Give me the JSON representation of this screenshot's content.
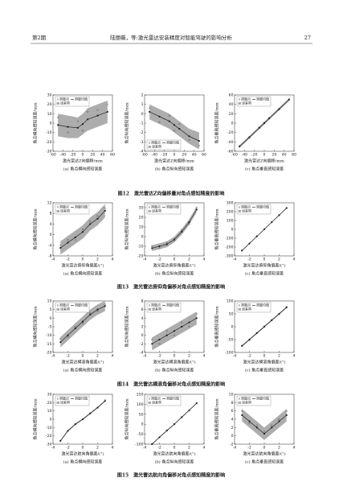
{
  "header": {
    "left": "第2期",
    "center": "陆丽薇，等:激光雷达安装精度对智能驾驶的影响分析",
    "right": "27"
  },
  "captions": [
    "图12　激光雷达Z向偏移量对角点感知精度的影响",
    "图13　激光雷达俯仰角偏移对角点感知精度的影响",
    "图14　激光雷达横滚角偏移对角点感知精度的影响",
    "图15　激光雷达航向角偏移对角点感知精度的影响"
  ],
  "chart_data": [
    {
      "type": "band",
      "subtitle": "(a) 角点横向感知误差",
      "xlabel": "激光雷达Z向偏移/mm",
      "ylabel": "角点横向感知误差/mm",
      "x": [
        -50,
        -30,
        -10,
        0,
        10,
        30,
        50
      ],
      "xlim": [
        -60,
        60
      ],
      "xticks": [
        -60,
        -40,
        -20,
        0,
        20,
        40,
        60
      ],
      "ylim": [
        -30,
        30
      ],
      "yticks": [
        -30,
        -20,
        -10,
        0,
        10,
        20,
        30
      ],
      "legend": "upper left",
      "series": [
        {
          "name": "测量点",
          "color": "#444",
          "values": [
            6,
            -10,
            2,
            -8,
            12,
            14,
            20
          ]
        },
        {
          "name": "测量均值",
          "color": "#111",
          "values": [
            -2,
            -4,
            -5,
            -1,
            4,
            8,
            12
          ]
        },
        {
          "name": "误差带",
          "color": "#777",
          "lower": [
            -14,
            -16,
            -16,
            -12,
            -8,
            -4,
            0
          ],
          "upper": [
            10,
            8,
            6,
            10,
            16,
            20,
            24
          ]
        }
      ]
    },
    {
      "type": "band",
      "subtitle": "(b) 角点纵向感知误差",
      "xlabel": "激光雷达Z向偏移/mm",
      "ylabel": "角点纵向感知误差/mm",
      "x": [
        -50,
        -30,
        -10,
        0,
        10,
        30,
        50
      ],
      "xlim": [
        -60,
        60
      ],
      "xticks": [
        -60,
        -40,
        -20,
        0,
        20,
        40,
        60
      ],
      "ylim": [
        -4,
        2
      ],
      "yticks": [
        -4,
        -3,
        -2,
        -1,
        0,
        1,
        2
      ],
      "legend": "lower left",
      "series": [
        {
          "name": "测量点",
          "color": "#444",
          "values": [
            0.6,
            -0.9,
            -0.2,
            -1.8,
            -1.1,
            -2.8,
            -3.4
          ]
        },
        {
          "name": "测量均值",
          "color": "#111",
          "values": [
            0.2,
            -0.3,
            -0.8,
            -1.2,
            -1.6,
            -2.4,
            -2.9
          ]
        },
        {
          "name": "误差带",
          "color": "#777",
          "lower": [
            -0.6,
            -1.1,
            -1.6,
            -2,
            -2.4,
            -3.2,
            -3.8
          ],
          "upper": [
            1,
            0.5,
            0,
            -0.4,
            -0.8,
            -1.6,
            -2
          ]
        }
      ]
    },
    {
      "type": "band",
      "subtitle": "(c) 角点垂直感知误差",
      "xlabel": "激光雷达Z向偏移/mm",
      "ylabel": "角点垂直感知误差/mm",
      "x": [
        -50,
        -30,
        -10,
        0,
        10,
        30,
        50
      ],
      "xlim": [
        -60,
        60
      ],
      "xticks": [
        -60,
        -40,
        -20,
        0,
        20,
        40,
        60
      ],
      "ylim": [
        -60,
        60
      ],
      "yticks": [
        -60,
        -40,
        -20,
        0,
        20,
        40,
        60
      ],
      "legend": "upper left",
      "series": [
        {
          "name": "测量点",
          "color": "#444",
          "values": [
            -49,
            -31,
            -9,
            1,
            11,
            29,
            51
          ]
        },
        {
          "name": "测量均值",
          "color": "#111",
          "values": [
            -50,
            -30,
            -10,
            0,
            10,
            30,
            50
          ]
        },
        {
          "name": "误差带",
          "color": "#777",
          "lower": [
            -53,
            -33,
            -13,
            -3,
            7,
            27,
            47
          ],
          "upper": [
            -47,
            -27,
            -7,
            3,
            13,
            33,
            53
          ]
        }
      ]
    },
    {
      "type": "band",
      "subtitle": "(a) 角点横向感知误差",
      "xlabel": "激光雷达俯仰角偏差/(°)",
      "ylabel": "角点横向感知误差/mm",
      "x": [
        -3,
        -2,
        -1,
        0,
        1,
        2,
        3
      ],
      "xlim": [
        -4,
        4
      ],
      "xticks": [
        -4,
        -2,
        0,
        2,
        4
      ],
      "ylim": [
        -8,
        12
      ],
      "yticks": [
        -8,
        -4,
        0,
        4,
        8,
        12
      ],
      "legend": "upper left",
      "series": [
        {
          "name": "测量点",
          "color": "#444",
          "values": [
            -4,
            -2,
            -2,
            2,
            5,
            7,
            10
          ]
        },
        {
          "name": "测量均值",
          "color": "#111",
          "values": [
            -5,
            -3,
            -1,
            1,
            4,
            6,
            9
          ]
        },
        {
          "name": "误差带",
          "color": "#777",
          "lower": [
            -7.5,
            -5.5,
            -3.5,
            -1.5,
            1.5,
            3.5,
            6.5
          ],
          "upper": [
            -2.5,
            -0.5,
            1.5,
            3.5,
            6.5,
            8.5,
            11.5
          ]
        }
      ]
    },
    {
      "type": "band",
      "subtitle": "(b) 角点纵向感知误差",
      "xlabel": "激光雷达俯仰角偏差/(°)",
      "ylabel": "角点纵向感知误差/mm",
      "x": [
        -3,
        -2,
        -1,
        0,
        1,
        2,
        3
      ],
      "xlim": [
        -4,
        4
      ],
      "xticks": [
        -4,
        -2,
        0,
        2,
        4
      ],
      "ylim": [
        -20,
        35
      ],
      "yticks": [
        -20,
        -10,
        0,
        10,
        20,
        30
      ],
      "legend": "upper left",
      "series": [
        {
          "name": "测量点",
          "color": "#444",
          "values": [
            -10,
            -12,
            -6,
            -4,
            7,
            13,
            30
          ]
        },
        {
          "name": "测量均值",
          "color": "#111",
          "values": [
            -12,
            -10,
            -8,
            -3,
            5,
            15,
            28
          ]
        },
        {
          "name": "误差带",
          "color": "#777",
          "lower": [
            -15,
            -13,
            -11,
            -6,
            2,
            12,
            25
          ],
          "upper": [
            -9,
            -7,
            -5,
            0,
            8,
            18,
            31
          ]
        }
      ]
    },
    {
      "type": "band",
      "subtitle": "(c) 角点垂直感知误差",
      "xlabel": "激光雷达俯仰角偏差/(°)",
      "ylabel": "角点垂直感知误差/mm",
      "x": [
        -3,
        -2,
        -1,
        0,
        1,
        2,
        3
      ],
      "xlim": [
        -4,
        4
      ],
      "xticks": [
        -4,
        -2,
        0,
        2,
        4
      ],
      "ylim": [
        -300,
        300
      ],
      "yticks": [
        -300,
        -200,
        -100,
        0,
        100,
        200,
        300
      ],
      "legend": "upper left",
      "series": [
        {
          "name": "测量点",
          "color": "#444",
          "values": [
            -238,
            -162,
            -78,
            2,
            82,
            158,
            242
          ]
        },
        {
          "name": "测量均值",
          "color": "#111",
          "values": [
            -240,
            -160,
            -80,
            0,
            80,
            160,
            240
          ]
        },
        {
          "name": "误差带",
          "color": "#777",
          "lower": [
            -245,
            -165,
            -85,
            -5,
            75,
            155,
            235
          ],
          "upper": [
            -235,
            -155,
            -75,
            5,
            85,
            165,
            245
          ]
        }
      ]
    },
    {
      "type": "band",
      "subtitle": "(a) 角点横向感知误差",
      "xlabel": "激光雷达横滚角偏差/(°)",
      "ylabel": "角点横向感知误差/mm",
      "x": [
        -3,
        -2,
        -1,
        0,
        1,
        2,
        3
      ],
      "xlim": [
        -4,
        4
      ],
      "xticks": [
        -4,
        -2,
        0,
        2,
        4
      ],
      "ylim": [
        -20,
        10
      ],
      "yticks": [
        -20,
        -15,
        -10,
        -5,
        0,
        5,
        10
      ],
      "legend": "upper left",
      "series": [
        {
          "name": "测量点",
          "color": "#444",
          "values": [
            -12,
            -11,
            -5,
            -3,
            3,
            4,
            8
          ]
        },
        {
          "name": "测量均值",
          "color": "#111",
          "values": [
            -14,
            -10,
            -6,
            -2,
            2,
            5,
            7
          ]
        },
        {
          "name": "误差带",
          "color": "#777",
          "lower": [
            -17,
            -13,
            -9,
            -5,
            -1,
            2,
            4
          ],
          "upper": [
            -11,
            -7,
            -3,
            1,
            5,
            8,
            10
          ]
        }
      ]
    },
    {
      "type": "band",
      "subtitle": "(b) 角点纵向感知误差",
      "xlabel": "激光雷达横滚角偏差/(°)",
      "ylabel": "角点纵向感知误差/mm",
      "x": [
        -3,
        -2,
        -1,
        0,
        1,
        2,
        3
      ],
      "xlim": [
        -4,
        4
      ],
      "xticks": [
        -4,
        -2,
        0,
        2,
        4
      ],
      "ylim": [
        -4,
        8
      ],
      "yticks": [
        -4,
        -2,
        0,
        2,
        4,
        6,
        8
      ],
      "legend": "upper left",
      "series": [
        {
          "name": "测量点",
          "color": "#444",
          "values": [
            -1,
            -2,
            1,
            0,
            3,
            2,
            5
          ]
        },
        {
          "name": "测量均值",
          "color": "#111",
          "values": [
            -2,
            -1,
            0,
            1,
            2,
            3,
            4
          ]
        },
        {
          "name": "误差带",
          "color": "#777",
          "lower": [
            -3.5,
            -2.5,
            -1.5,
            -0.5,
            0.5,
            1.5,
            2.5
          ],
          "upper": [
            -0.5,
            0.5,
            1.5,
            2.5,
            3.5,
            4.5,
            5.5
          ]
        }
      ]
    },
    {
      "type": "band",
      "subtitle": "(c) 角点垂直感知误差",
      "xlabel": "激光雷达横滚角偏差/(°)",
      "ylabel": "角点垂直感知误差/mm",
      "x": [
        -3,
        -2,
        -1,
        0,
        1,
        2,
        3
      ],
      "xlim": [
        -4,
        4
      ],
      "xticks": [
        -4,
        -2,
        0,
        2,
        4
      ],
      "ylim": [
        -100,
        100
      ],
      "yticks": [
        -100,
        -50,
        0,
        50,
        100
      ],
      "legend": "upper left",
      "series": [
        {
          "name": "测量点",
          "color": "#444",
          "values": [
            -73,
            -52,
            -24,
            1,
            26,
            49,
            77
          ]
        },
        {
          "name": "测量均值",
          "color": "#111",
          "values": [
            -75,
            -50,
            -25,
            0,
            25,
            50,
            75
          ]
        },
        {
          "name": "误差带",
          "color": "#777",
          "lower": [
            -78,
            -53,
            -28,
            -3,
            22,
            47,
            72
          ],
          "upper": [
            -72,
            -47,
            -22,
            3,
            28,
            53,
            78
          ]
        }
      ]
    },
    {
      "type": "band",
      "subtitle": "(a) 角点横向感知误差",
      "xlabel": "激光雷达航向角偏差/(°)",
      "ylabel": "角点横向感知误差/mm",
      "x": [
        -3,
        -2,
        -1,
        0,
        1,
        2,
        3
      ],
      "xlim": [
        -4,
        4
      ],
      "xticks": [
        -4,
        -2,
        0,
        2,
        4
      ],
      "ylim": [
        -30,
        30
      ],
      "yticks": [
        -30,
        -20,
        -10,
        0,
        10,
        20,
        30
      ],
      "legend": "upper left",
      "series": [
        {
          "name": "测量点",
          "color": "#444",
          "values": [
            -26,
            -14,
            -6,
            0,
            7,
            14,
            23
          ]
        },
        {
          "name": "测量均值",
          "color": "#111",
          "values": [
            -26,
            -14,
            -6,
            0,
            7,
            14,
            22
          ]
        },
        {
          "name": "误差带",
          "color": "#777",
          "lower": [
            -27,
            -15,
            -7,
            -1,
            6,
            13,
            21
          ],
          "upper": [
            -25,
            -13,
            -5,
            1,
            8,
            15,
            23
          ]
        }
      ]
    },
    {
      "type": "band",
      "subtitle": "(b) 角点纵向感知误差",
      "xlabel": "激光雷达航向角偏差/(°)",
      "ylabel": "角点纵向感知误差/mm",
      "x": [
        -3,
        -2,
        -1,
        0,
        1,
        2,
        3
      ],
      "xlim": [
        -4,
        4
      ],
      "xticks": [
        -4,
        -2,
        0,
        2,
        4
      ],
      "ylim": [
        -100,
        150
      ],
      "yticks": [
        -100,
        -50,
        0,
        50,
        100,
        150
      ],
      "legend": "upper left",
      "series": [
        {
          "name": "测量点",
          "color": "#444",
          "values": [
            -98,
            -66,
            -30,
            1,
            36,
            69,
            106
          ]
        },
        {
          "name": "测量均值",
          "color": "#111",
          "values": [
            -100,
            -65,
            -32,
            0,
            35,
            70,
            105
          ]
        },
        {
          "name": "误差带",
          "color": "#777",
          "lower": [
            -103,
            -68,
            -35,
            -3,
            32,
            67,
            102
          ],
          "upper": [
            -97,
            -62,
            -29,
            3,
            38,
            73,
            108
          ]
        }
      ]
    },
    {
      "type": "band",
      "subtitle": "(c) 角点垂直感知误差",
      "xlabel": "激光雷达航向角偏差/(°)",
      "ylabel": "角点垂直感知误差/mm",
      "x": [
        -3,
        -2,
        -1,
        0,
        1,
        2,
        3
      ],
      "xlim": [
        -4,
        4
      ],
      "xticks": [
        -4,
        -2,
        0,
        2,
        4
      ],
      "ylim": [
        -2,
        10
      ],
      "yticks": [
        -2,
        0,
        2,
        4,
        6,
        8,
        10
      ],
      "legend": "upper left",
      "series": [
        {
          "name": "测量点",
          "color": "#444",
          "values": [
            6,
            3,
            2.5,
            1,
            2.5,
            4,
            6
          ]
        },
        {
          "name": "测量均值",
          "color": "#111",
          "values": [
            5,
            3.5,
            2,
            0.5,
            2,
            3.5,
            5
          ]
        },
        {
          "name": "误差带",
          "color": "#777",
          "lower": [
            3.5,
            2,
            0.5,
            -1,
            0.5,
            2,
            3.5
          ],
          "upper": [
            6.5,
            5,
            3.5,
            2,
            3.5,
            5,
            6.5
          ]
        }
      ]
    }
  ]
}
